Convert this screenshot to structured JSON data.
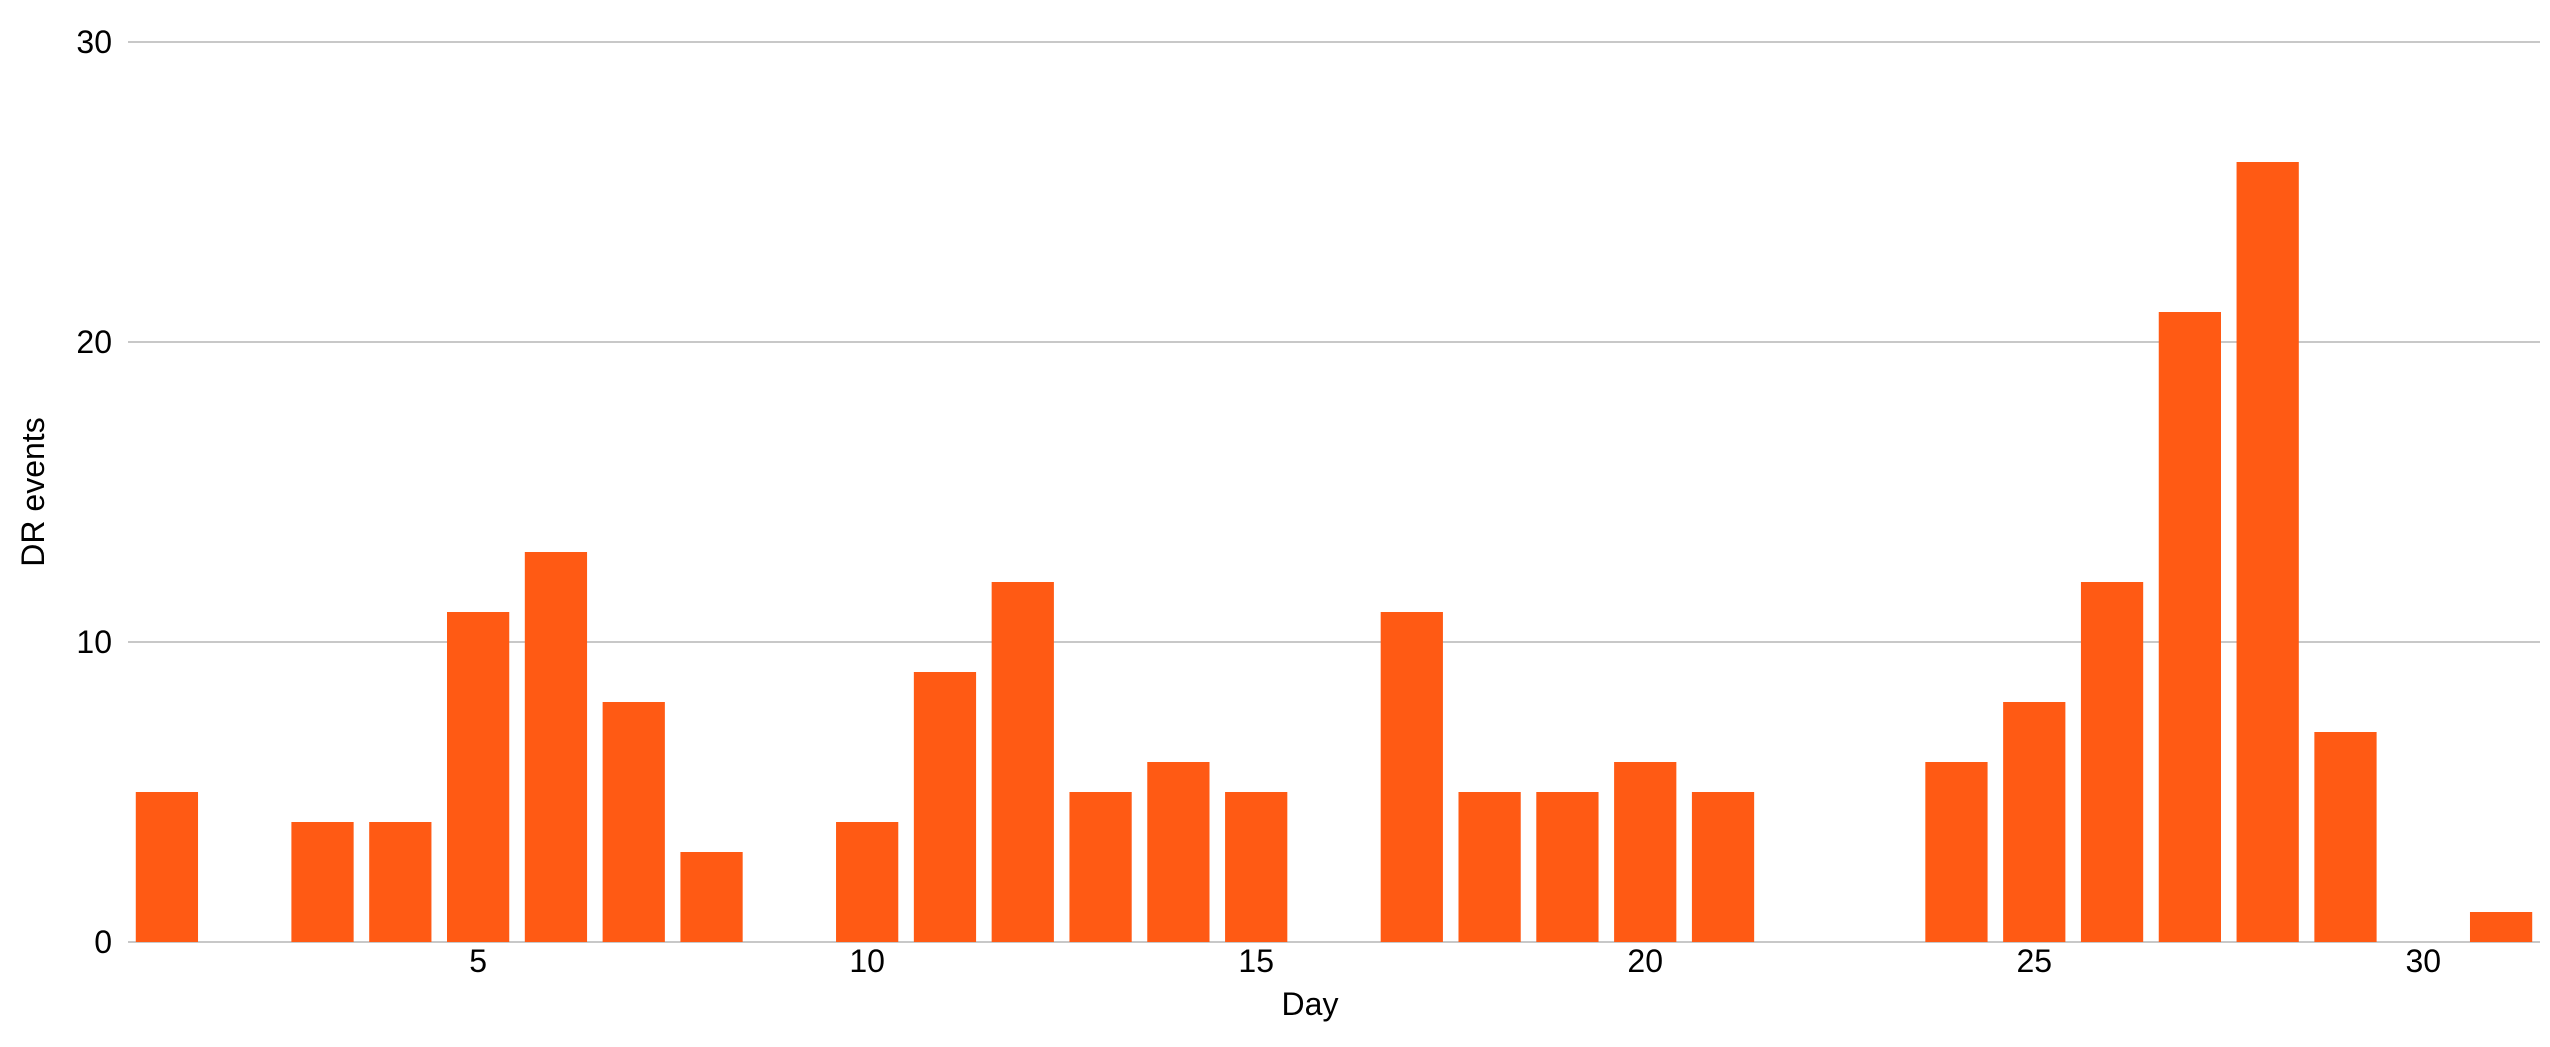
{
  "chart_data": {
    "type": "bar",
    "xlabel": "Day",
    "ylabel": "DR events",
    "x": [
      1,
      2,
      3,
      4,
      5,
      6,
      7,
      8,
      9,
      10,
      11,
      12,
      13,
      14,
      15,
      16,
      17,
      18,
      19,
      20,
      21,
      22,
      23,
      24,
      25,
      26,
      27,
      28,
      29,
      30,
      31
    ],
    "values": [
      5,
      0,
      4,
      4,
      11,
      13,
      8,
      3,
      0,
      4,
      9,
      12,
      5,
      6,
      5,
      0,
      11,
      5,
      5,
      6,
      5,
      0,
      0,
      6,
      8,
      12,
      21,
      26,
      7,
      0,
      1
    ],
    "xlim": [
      0.5,
      31.5
    ],
    "ylim": [
      0,
      30
    ],
    "xticks": [
      5,
      10,
      15,
      20,
      25,
      30
    ],
    "yticks": [
      0,
      10,
      20,
      30
    ],
    "grid": true,
    "bar_color": "#ff5a14",
    "grid_color": "#c8c8c8"
  }
}
